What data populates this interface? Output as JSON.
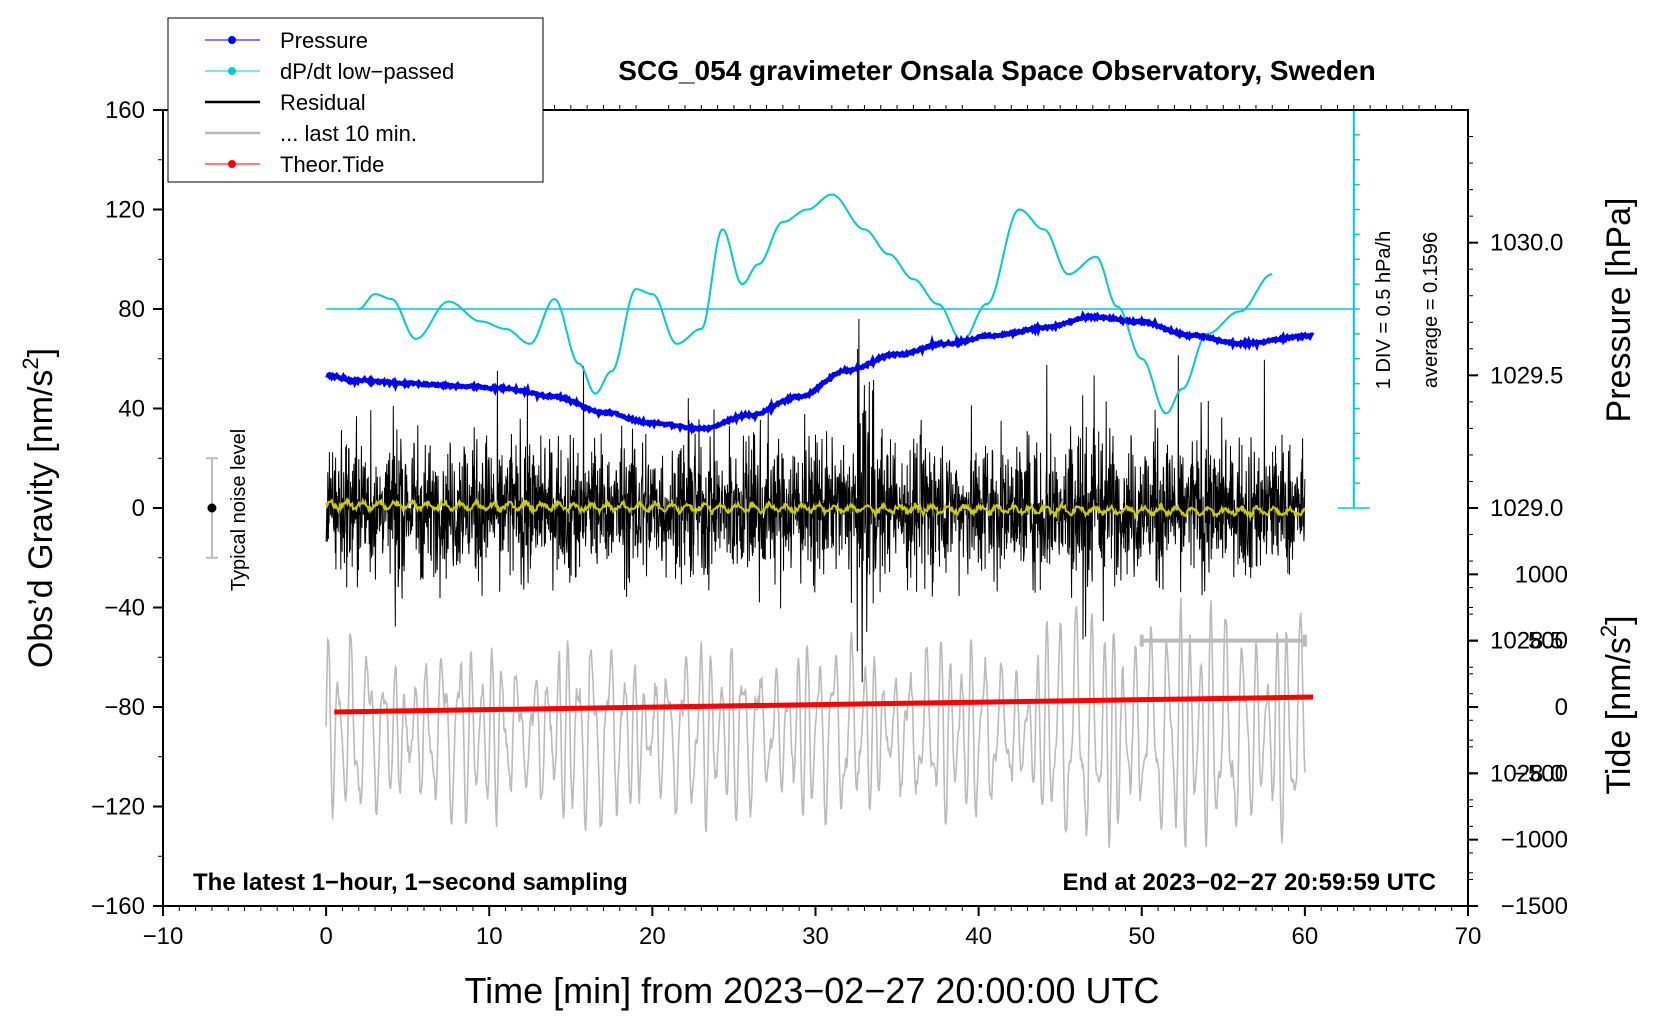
{
  "chart_data": {
    "type": "line",
    "title": "SCG_054 gravimeter Onsala Space Observatory, Sweden",
    "xlabel": "Time [min] from 2023−02−27 20:00:00 UTC",
    "ylabel": "Obs’d Gravity [nm/s²]",
    "ylabel_main": "Obs’d Gravity [nm/s",
    "ylabel_sup": "2",
    "ylabel_end": "]",
    "y2label": "Pressure [hPa]",
    "y3label_main": "Tide [nm/s",
    "y3label_sup": "2",
    "y3label_end": "]",
    "xlim": [
      -10,
      70
    ],
    "ylim": [
      -160,
      160
    ],
    "pressure_lim": [
      1027.5,
      1030.5
    ],
    "tide_lim": [
      -1500,
      4500
    ],
    "x_ticks": [
      "−10",
      "0",
      "10",
      "20",
      "30",
      "40",
      "50",
      "60",
      "70"
    ],
    "x_tick_values": [
      -10,
      0,
      10,
      20,
      30,
      40,
      50,
      60,
      70
    ],
    "y_ticks": [
      "160",
      "120",
      "80",
      "40",
      "0",
      "−40",
      "−80",
      "−120",
      "−160"
    ],
    "y_tick_values": [
      160,
      120,
      80,
      40,
      0,
      -40,
      -80,
      -120,
      -160
    ],
    "pressure_ticks": [
      "1030.0",
      "1029.5",
      "1029.0",
      "1028.5",
      "1028.0"
    ],
    "pressure_tick_values": [
      1030.0,
      1029.5,
      1029.0,
      1028.5,
      1028.0
    ],
    "tide_ticks": [
      "1000",
      "500",
      "0",
      "−500",
      "−1000",
      "−1500"
    ],
    "tide_tick_values": [
      1000,
      500,
      0,
      -500,
      -1000,
      -1500
    ],
    "legend": [
      {
        "label": "Pressure",
        "color": "#0000ff",
        "style": "line-dot"
      },
      {
        "label": "dP/dt low−passed",
        "color": "#00cccc",
        "style": "line-dot"
      },
      {
        "label": "Residual",
        "color": "#000000",
        "style": "line"
      },
      {
        "label": "... last 10 min.",
        "color": "#bbbbbb",
        "style": "line"
      },
      {
        "label": "Theor.Tide",
        "color": "#ff0000",
        "style": "line-dot"
      }
    ],
    "annotations": {
      "bottom_left": "The latest 1−hour, 1−second sampling",
      "bottom_right": "End at 2023−02−27 20:59:59 UTC",
      "noise_label": "Typical noise level",
      "scale_div": "1 DIV = 0.5 hPa/h",
      "scale_avg": "average = 0.1596"
    },
    "noise_level": {
      "x": -7,
      "center": 0,
      "half_range": 20
    },
    "dpdt_zero_line": 80,
    "scale_bar": {
      "x": 63,
      "y_top": 160,
      "y_bottom": 0,
      "ticks": 16
    },
    "series": [
      {
        "name": "Pressure",
        "unit": "hPa",
        "color": "#0000ff",
        "x": [
          0,
          2,
          5,
          8,
          11,
          14,
          17,
          20,
          23,
          26,
          29,
          32,
          35,
          38,
          41,
          44,
          47,
          50,
          53,
          56,
          60.5
        ],
        "values": [
          1029.5,
          1029.48,
          1029.47,
          1029.46,
          1029.45,
          1029.42,
          1029.36,
          1029.32,
          1029.3,
          1029.35,
          1029.42,
          1029.52,
          1029.58,
          1029.62,
          1029.65,
          1029.68,
          1029.72,
          1029.7,
          1029.65,
          1029.62,
          1029.65
        ]
      },
      {
        "name": "dP/dt low-passed",
        "unit": "nm/s² axis",
        "color": "#00cccc",
        "x": [
          2,
          3,
          4,
          5.5,
          7.5,
          9.5,
          11,
          12.5,
          14,
          15.5,
          16.5,
          17.5,
          19,
          20,
          21.5,
          23,
          24.3,
          25.5,
          26.5,
          28,
          29.5,
          31,
          33,
          34.5,
          36,
          37.5,
          39,
          40.5,
          42.5,
          44,
          45.5,
          47.2,
          48.5,
          50,
          51.5,
          52.5,
          54,
          56,
          58
        ],
        "values": [
          80,
          86,
          84,
          68,
          83,
          75,
          72,
          66,
          84,
          58,
          46,
          55,
          88,
          86,
          66,
          72,
          112,
          90,
          98,
          115,
          120,
          126,
          112,
          102,
          92,
          82,
          67,
          82,
          120,
          112,
          94,
          101,
          81,
          60,
          38,
          48,
          70,
          79,
          94
        ]
      },
      {
        "name": "Theor.Tide",
        "unit": "nm/s²",
        "color": "#ff0000",
        "x": [
          0.5,
          60.5
        ],
        "values": [
          -82,
          -76
        ]
      }
    ],
    "tide_highlight": {
      "x": [
        50,
        60
      ],
      "value": 500
    }
  }
}
